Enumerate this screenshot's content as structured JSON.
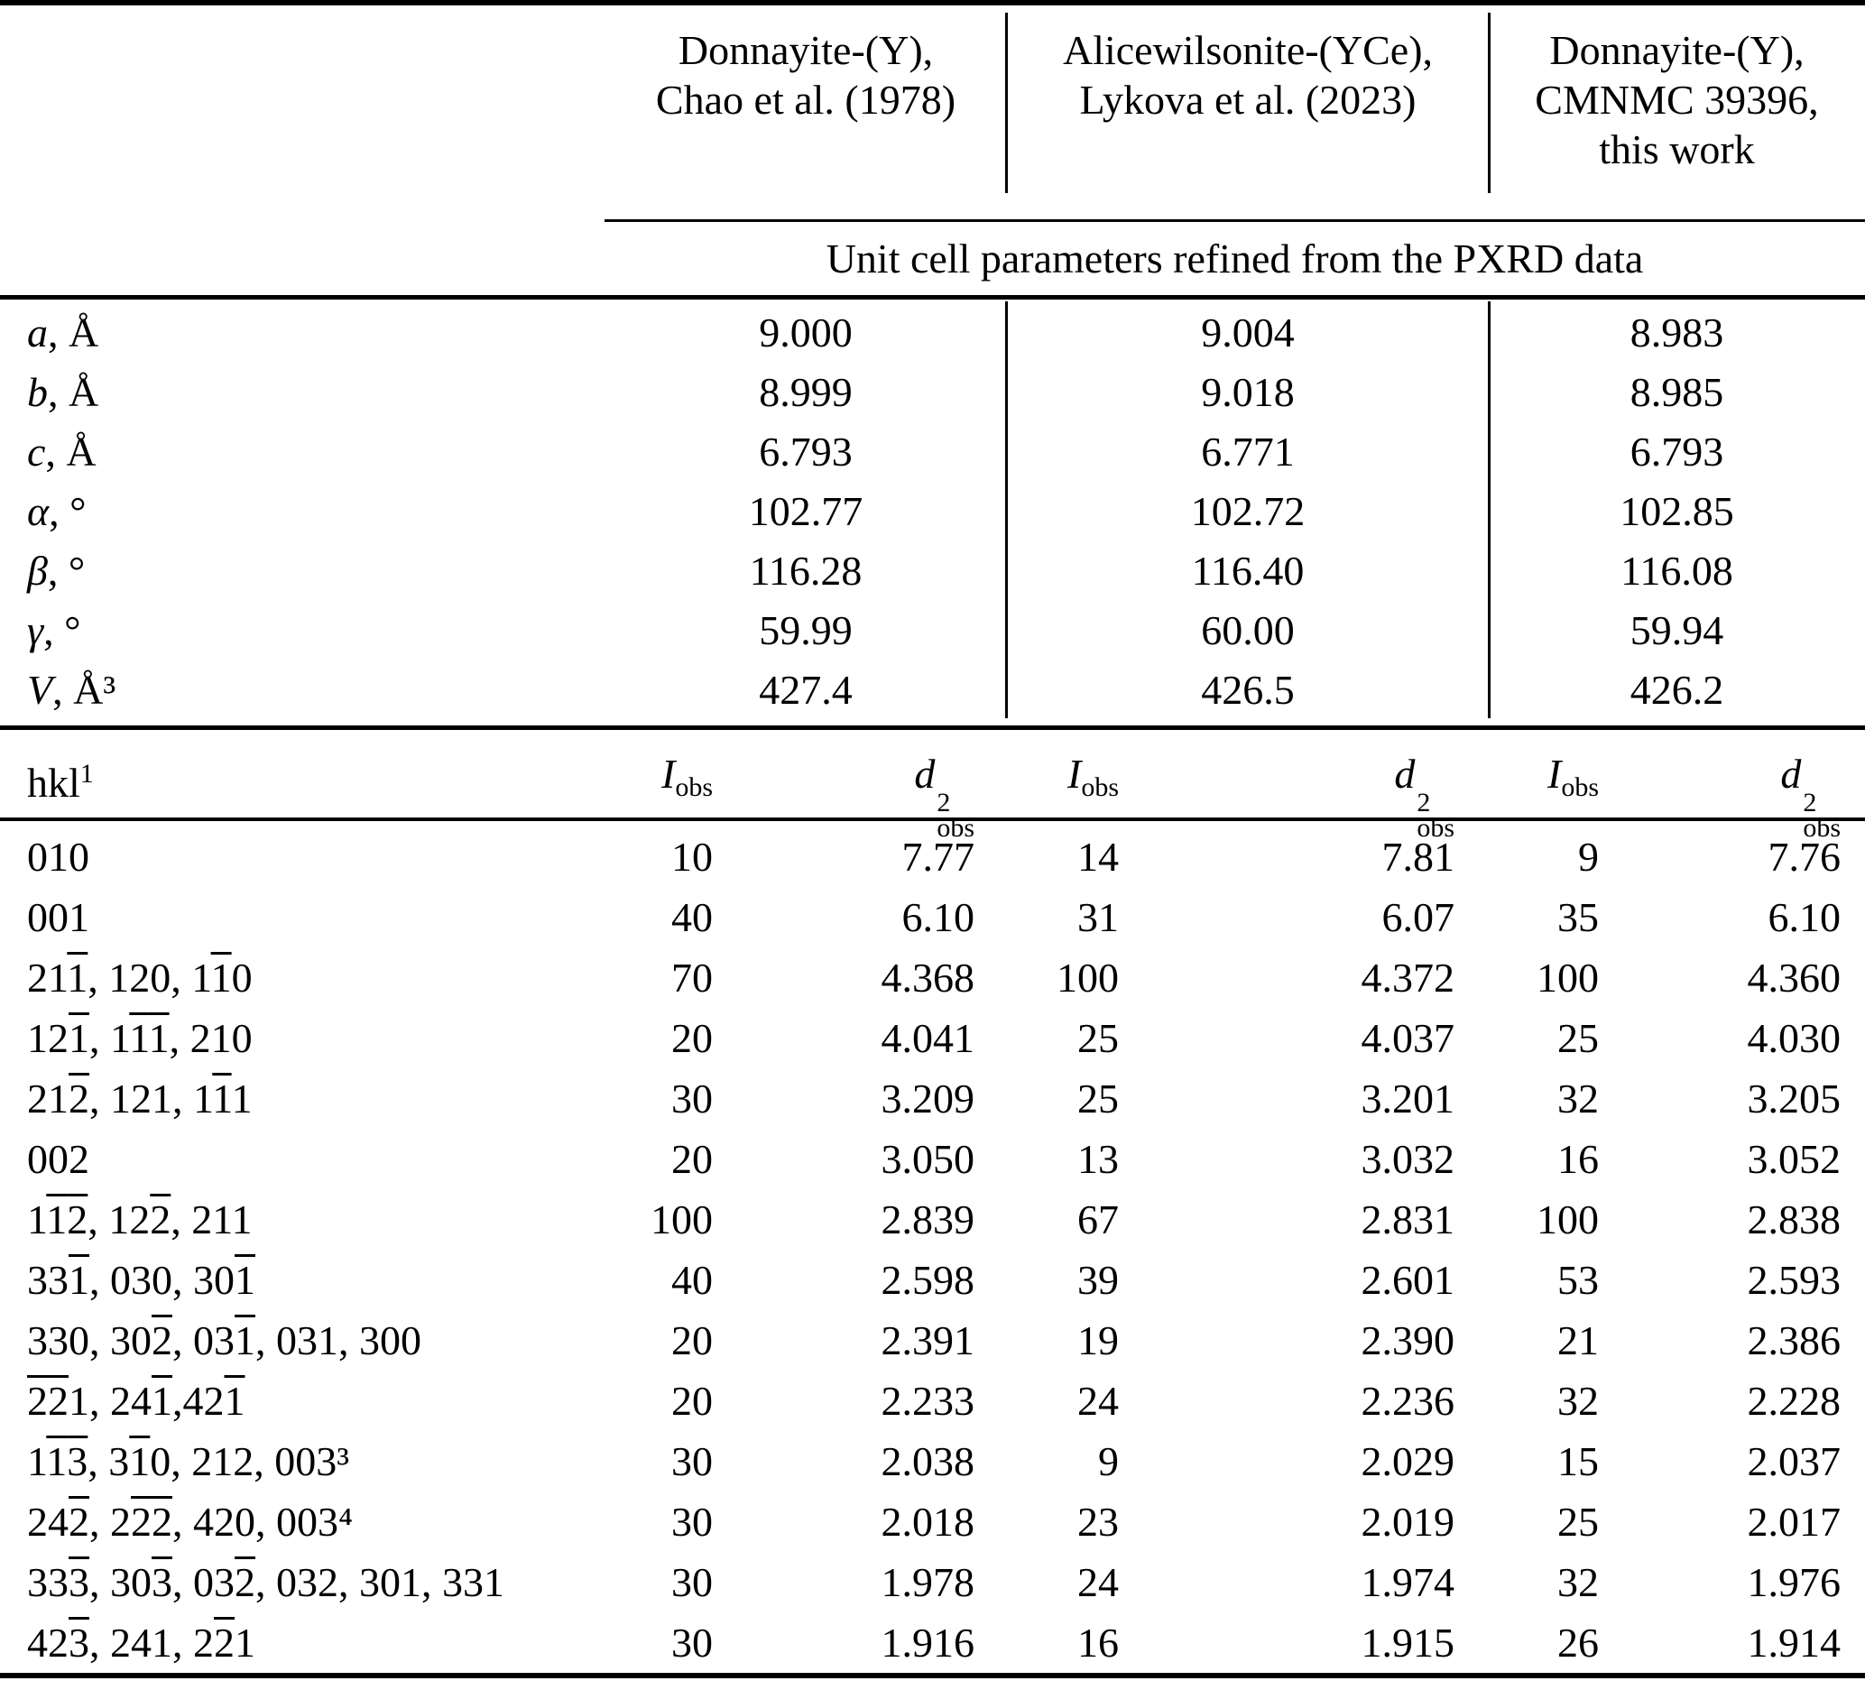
{
  "colors": {
    "text": "#000000",
    "background": "#ffffff",
    "rule": "#000000"
  },
  "table": {
    "headers": {
      "cols": [
        {
          "lines": [
            "Donnayite-(Y),",
            "Chao et al. (1978)"
          ]
        },
        {
          "lines": [
            "Alicewilsonite-(YCe),",
            "Lykova et al. (2023)"
          ]
        },
        {
          "lines": [
            "Donnayite-(Y),",
            "CMNMC 39396,",
            "this work"
          ]
        }
      ]
    },
    "subheader": "Unit cell parameters refined from the PXRD data",
    "unit_cell": {
      "params": [
        {
          "sym": "a",
          "unit": ", Å",
          "values": [
            "9.000",
            "9.004",
            "8.983"
          ]
        },
        {
          "sym": "b",
          "unit": ", Å",
          "values": [
            "8.999",
            "9.018",
            "8.985"
          ]
        },
        {
          "sym": "c",
          "unit": ", Å",
          "values": [
            "6.793",
            "6.771",
            "6.793"
          ]
        },
        {
          "sym": "α",
          "unit": ", °",
          "values": [
            "102.77",
            "102.72",
            "102.85"
          ]
        },
        {
          "sym": "β",
          "unit": ", °",
          "values": [
            "116.28",
            "116.40",
            "116.08"
          ]
        },
        {
          "sym": "γ",
          "unit": ", °",
          "values": [
            "59.99",
            "60.00",
            "59.94"
          ]
        },
        {
          "sym": "V",
          "unit": ", Å³",
          "values": [
            "427.4",
            "426.5",
            "426.2"
          ]
        }
      ]
    },
    "pxrd": {
      "header": {
        "hkl_base": "hkl",
        "hkl_sup": "1",
        "i_sym": "I",
        "i_sub": "obs",
        "d_sym": "d",
        "d_sup": "2",
        "d_sub": "obs"
      },
      "rows": [
        {
          "hkl": "010",
          "cells": [
            "10",
            "7.77",
            "14",
            "7.81",
            "9",
            "7.76"
          ]
        },
        {
          "hkl": "001",
          "cells": [
            "40",
            "6.10",
            "31",
            "6.07",
            "35",
            "6.10"
          ]
        },
        {
          "hkl": "211̅, 120, 11̅0",
          "cells": [
            "70",
            "4.368",
            "100",
            "4.372",
            "100",
            "4.360"
          ]
        },
        {
          "hkl": "121̅, 11̅1̅, 210",
          "cells": [
            "20",
            "4.041",
            "25",
            "4.037",
            "25",
            "4.030"
          ]
        },
        {
          "hkl": "212̅, 121, 11̅1",
          "cells": [
            "30",
            "3.209",
            "25",
            "3.201",
            "32",
            "3.205"
          ]
        },
        {
          "hkl": "002",
          "cells": [
            "20",
            "3.050",
            "13",
            "3.032",
            "16",
            "3.052"
          ]
        },
        {
          "hkl": "11̅2̅, 122̅, 211",
          "cells": [
            "100",
            "2.839",
            "67",
            "2.831",
            "100",
            "2.838"
          ]
        },
        {
          "hkl": "331̅, 030, 301̅",
          "cells": [
            "40",
            "2.598",
            "39",
            "2.601",
            "53",
            "2.593"
          ]
        },
        {
          "hkl": "330, 302̅, 031̅, 031, 300",
          "cells": [
            "20",
            "2.391",
            "19",
            "2.390",
            "21",
            "2.386"
          ]
        },
        {
          "hkl": "2̅2̅1, 241̅,421̅",
          "cells": [
            "20",
            "2.233",
            "24",
            "2.236",
            "32",
            "2.228"
          ]
        },
        {
          "hkl": "11̅3̅, 31̅0, 212, 003³",
          "cells": [
            "30",
            "2.038",
            "9",
            "2.029",
            "15",
            "2.037"
          ]
        },
        {
          "hkl": "242̅, 22̅2̅, 420, 003⁴",
          "cells": [
            "30",
            "2.018",
            "23",
            "2.019",
            "25",
            "2.017"
          ]
        },
        {
          "hkl": "333̅, 303̅, 032̅, 032, 301, 331",
          "cells": [
            "30",
            "1.978",
            "24",
            "1.974",
            "32",
            "1.976"
          ]
        },
        {
          "hkl": "423̅, 241, 22̅1",
          "cells": [
            "30",
            "1.916",
            "16",
            "1.915",
            "26",
            "1.914"
          ]
        }
      ]
    }
  }
}
